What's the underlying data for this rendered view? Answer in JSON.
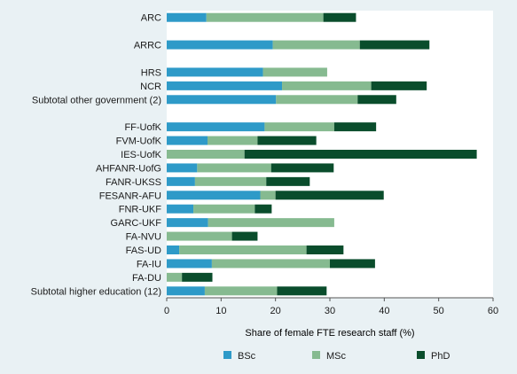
{
  "chart_data": {
    "type": "bar",
    "orientation": "horizontal",
    "stacked": true,
    "categories": [
      "ARC",
      "",
      "ARRC",
      "",
      "HRS",
      "NCR",
      "Subtotal other government (2)",
      "",
      "FF-UofK",
      "FVM-UofK",
      "IES-UofK",
      "AHFANR-UofG",
      "FANR-UKSS",
      "FESANR-AFU",
      "FNR-UKF",
      "GARC-UKF",
      "FA-NVU",
      "FAS-UD",
      "FA-IU",
      "FA-DU",
      "Subtotal higher education (12)"
    ],
    "series": [
      {
        "name": "BSc",
        "color": "#2e9ac8",
        "values": [
          7.3,
          null,
          19.5,
          null,
          17.7,
          21.2,
          20.1,
          null,
          18.0,
          7.5,
          0,
          5.6,
          5.2,
          17.2,
          4.9,
          7.6,
          0,
          2.3,
          8.3,
          0,
          7.0
        ]
      },
      {
        "name": "MSc",
        "color": "#86ba90",
        "values": [
          21.5,
          null,
          16.0,
          null,
          11.8,
          16.4,
          15.0,
          null,
          12.8,
          9.2,
          14.3,
          13.6,
          13.1,
          2.8,
          11.3,
          23.2,
          12.0,
          23.4,
          21.7,
          2.8,
          13.3
        ]
      },
      {
        "name": "PhD",
        "color": "#0a4d2c",
        "values": [
          6.0,
          null,
          12.8,
          null,
          0,
          10.2,
          7.1,
          null,
          7.7,
          10.8,
          42.7,
          11.5,
          8.0,
          19.9,
          3.1,
          0,
          4.7,
          6.8,
          8.3,
          5.6,
          9.1
        ]
      }
    ],
    "xlabel": "Share of female FTE research staff (%)",
    "ylabel": "",
    "xlim": [
      0,
      60
    ],
    "xticks": [
      "0",
      "10",
      "20",
      "30",
      "40",
      "50",
      "60"
    ],
    "grid": false,
    "legend_position": "bottom",
    "background": "#e9f1f4"
  }
}
